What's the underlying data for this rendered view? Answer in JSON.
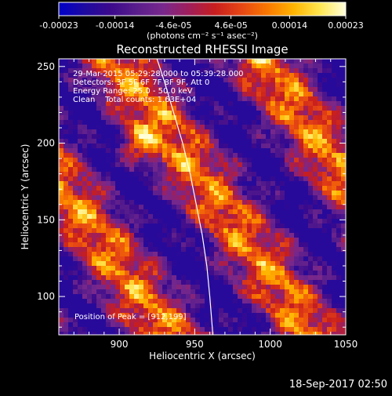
{
  "chart_data": {
    "type": "heatmap",
    "title": "Reconstructed RHESSI Image",
    "xlabel": "Heliocentric X (arcsec)",
    "ylabel": "Heliocentric Y (arcsec)",
    "xlim": [
      860,
      1050
    ],
    "ylim": [
      75,
      255
    ],
    "x_ticks": [
      900,
      950,
      1000,
      1050
    ],
    "y_ticks": [
      100,
      150,
      200,
      250
    ],
    "colorbar": {
      "min": -0.00023,
      "max": 0.00023,
      "tick_labels": [
        "-0.00023",
        "-0.00014",
        "-4.6e-05",
        "4.6e-05",
        "0.00014",
        "0.00023"
      ],
      "unit_label": "(photons cm⁻² s⁻¹ asec⁻²)"
    },
    "annotations": [
      "29-Mar-2015 05:29:28.000 to 05:39:28.000",
      "Detectors: 3F 5F 6F 7F 8F 9F, Att 0",
      "Energy Range: 25.0 - 50.0 keV",
      "Clean    Total counts: 1.63E+04"
    ],
    "peak_label": "Position of Peak = [912,199]",
    "peak": [
      912,
      199
    ],
    "limb_curve": [
      [
        925,
        255
      ],
      [
        930,
        240
      ],
      [
        936,
        220
      ],
      [
        942,
        200
      ],
      [
        947,
        180
      ],
      [
        951,
        160
      ],
      [
        955,
        140
      ],
      [
        958,
        120
      ],
      [
        960,
        100
      ],
      [
        962,
        75
      ]
    ]
  },
  "timestamp": "18-Sep-2017 02:50",
  "colors": {
    "colorbar_stops": [
      "#0000c8",
      "#1e0aa0",
      "#3c0a8c",
      "#5a1e8c",
      "#78288c",
      "#a01e5a",
      "#c81e1e",
      "#e64614",
      "#fa7800",
      "#ffb400",
      "#ffe650",
      "#ffffdc"
    ]
  }
}
